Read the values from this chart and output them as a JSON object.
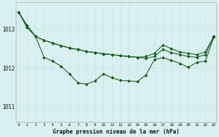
{
  "hours": [
    0,
    1,
    2,
    3,
    4,
    5,
    6,
    7,
    8,
    9,
    10,
    11,
    12,
    13,
    14,
    15,
    16,
    17,
    18,
    19,
    20,
    21,
    22,
    23
  ],
  "line_top": [
    1013.45,
    1013.1,
    1012.82,
    1012.72,
    1012.65,
    1012.58,
    1012.52,
    1012.48,
    1012.43,
    1012.4,
    1012.37,
    1012.35,
    1012.32,
    1012.3,
    1012.28,
    1012.3,
    1012.38,
    1012.6,
    1012.5,
    1012.42,
    1012.38,
    1012.35,
    1012.42,
    1012.82
  ],
  "line_mid": [
    1013.45,
    1013.1,
    1012.82,
    1012.72,
    1012.65,
    1012.58,
    1012.52,
    1012.48,
    1012.43,
    1012.4,
    1012.37,
    1012.35,
    1012.32,
    1012.3,
    1012.28,
    1012.25,
    1012.3,
    1012.48,
    1012.4,
    1012.35,
    1012.3,
    1012.28,
    1012.35,
    1012.82
  ],
  "line_bot": [
    1013.45,
    1013.05,
    1012.82,
    1012.28,
    1012.18,
    1012.05,
    1011.85,
    1011.62,
    1011.58,
    1011.67,
    1011.85,
    1011.75,
    1011.68,
    1011.67,
    1011.65,
    1011.82,
    1012.22,
    1012.27,
    1012.2,
    1012.12,
    1012.02,
    1012.15,
    1012.18,
    1012.8
  ],
  "bg_color": "#d8f0f0",
  "line_color": "#1a5c1a",
  "grid_major_color": "#c8e4e4",
  "grid_minor_color": "#ddf0f0",
  "xlabel": "Graphe pression niveau de la mer (hPa)",
  "yticks": [
    1011,
    1012,
    1013
  ],
  "ylim": [
    1010.6,
    1013.7
  ],
  "xlim": [
    -0.3,
    23.3
  ],
  "figw": 3.2,
  "figh": 2.0,
  "dpi": 100
}
